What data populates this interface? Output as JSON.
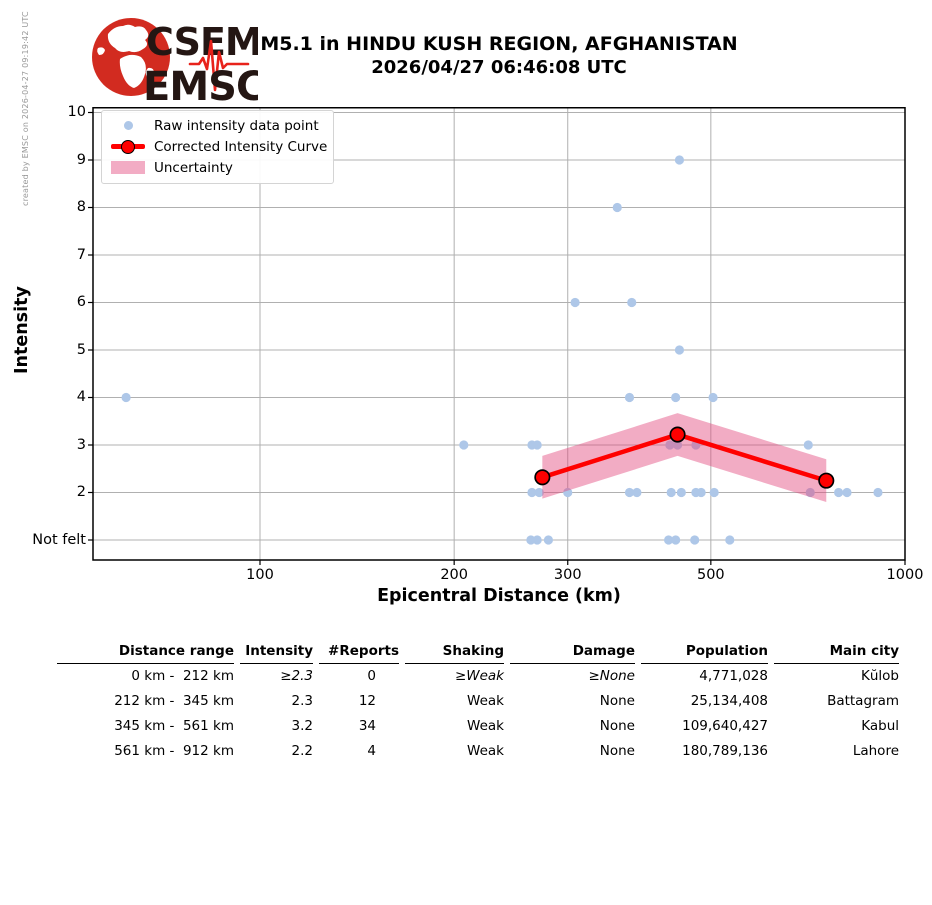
{
  "meta": {
    "created_by": "created by EMSC on 2026-04-27 09:19:42 UTC"
  },
  "header": {
    "logo_top": "CSEM",
    "logo_bottom": "EMSC",
    "title_line1": "M5.1 in HINDU KUSH REGION, AFGHANISTAN",
    "title_line2": "2026/04/27 06:46:08 UTC"
  },
  "chart_data": {
    "type": "scatter",
    "title": "M5.1 in HINDU KUSH REGION, AFGHANISTAN 2026/04/27 06:46:08 UTC",
    "xlabel": "Epicentral Distance (km)",
    "ylabel": "Intensity",
    "x_scale": "log",
    "x_range_km": [
      55,
      1000
    ],
    "x_ticks": [
      100,
      200,
      300,
      500,
      1000
    ],
    "y_ticks": [
      {
        "label": "10",
        "value": 10
      },
      {
        "label": "9",
        "value": 9
      },
      {
        "label": "8",
        "value": 8
      },
      {
        "label": "7",
        "value": 7
      },
      {
        "label": "6",
        "value": 6
      },
      {
        "label": "5",
        "value": 5
      },
      {
        "label": "4",
        "value": 4
      },
      {
        "label": "3",
        "value": 3
      },
      {
        "label": "2",
        "value": 2
      },
      {
        "label": "Not felt",
        "value": 1
      }
    ],
    "legend": {
      "raw": "Raw intensity data point",
      "curve": "Corrected Intensity Curve",
      "band": "Uncertainty"
    },
    "raw_points": [
      [
        62,
        4
      ],
      [
        207,
        3
      ],
      [
        263,
        1
      ],
      [
        264,
        3
      ],
      [
        264,
        2
      ],
      [
        269,
        3
      ],
      [
        269,
        1
      ],
      [
        271,
        2
      ],
      [
        280,
        1
      ],
      [
        300,
        2
      ],
      [
        308,
        6
      ],
      [
        358,
        8
      ],
      [
        374,
        4
      ],
      [
        374,
        2
      ],
      [
        377,
        6
      ],
      [
        384,
        2
      ],
      [
        430,
        1
      ],
      [
        432,
        3
      ],
      [
        434,
        2
      ],
      [
        441,
        4
      ],
      [
        441,
        1
      ],
      [
        444,
        3
      ],
      [
        447,
        9
      ],
      [
        447,
        5
      ],
      [
        450,
        2
      ],
      [
        472,
        1
      ],
      [
        474,
        3
      ],
      [
        474,
        2
      ],
      [
        483,
        2
      ],
      [
        504,
        4
      ],
      [
        506,
        2
      ],
      [
        535,
        1
      ],
      [
        708,
        3
      ],
      [
        713,
        2
      ],
      [
        789,
        2
      ],
      [
        813,
        2
      ],
      [
        908,
        2
      ]
    ],
    "corrected_curve": [
      [
        274,
        2.32
      ],
      [
        444,
        3.22
      ],
      [
        755,
        2.25
      ]
    ],
    "uncertainty_half_width": 0.45,
    "colors": {
      "raw_point": "#aec7e8",
      "curve": "#ff0000",
      "band": "rgba(226,70,125,0.45)",
      "grid": "#b0b0b0",
      "axis": "#000000"
    },
    "grid": true,
    "legend_position": "upper left"
  },
  "table": {
    "headers": [
      "Distance range",
      "Intensity",
      "#Reports",
      "Shaking",
      "Damage",
      "Population",
      "Main city"
    ],
    "rows": [
      [
        "0 km -  212 km",
        "≥2.3",
        "0",
        "≥Weak",
        "≥None",
        "4,771,028",
        "Kŭlob"
      ],
      [
        "212 km -  345 km",
        "2.3",
        "12",
        "Weak",
        "None",
        "25,134,408",
        "Battagram"
      ],
      [
        "345 km -  561 km",
        "3.2",
        "34",
        "Weak",
        "None",
        "109,640,427",
        "Kabul"
      ],
      [
        "561 km -  912 km",
        "2.2",
        "4",
        "Weak",
        "None",
        "180,789,136",
        "Lahore"
      ]
    ]
  }
}
